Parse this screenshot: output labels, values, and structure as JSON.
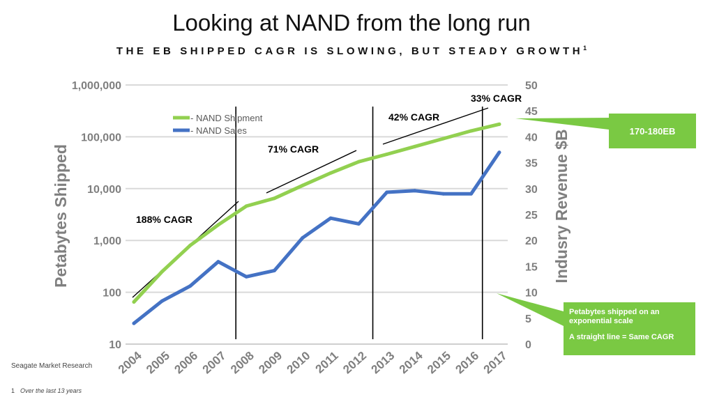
{
  "title": "Looking at NAND from the long run",
  "subtitle": "THE EB SHIPPED CAGR IS SLOWING, BUT STEADY GROWTH",
  "subtitle_sup": "1",
  "source": "Seagate Market Research",
  "footnote": {
    "number": "1",
    "text": "Over the last 13 years"
  },
  "callouts": {
    "top": "170-180EB",
    "bottom_line1": "Petabytes shipped on an exponential scale",
    "bottom_line2": "A straight line = Same CAGR"
  },
  "colors": {
    "shipment": "#92d050",
    "sales": "#4472c4",
    "callout": "#7ac943",
    "grid": "#d9d9d9",
    "axis_text": "#7f7f7f"
  },
  "chart_data": {
    "type": "line",
    "x": [
      "2004",
      "2005",
      "2006",
      "2007",
      "2008",
      "2009",
      "2010",
      "2011",
      "2012",
      "2013",
      "2014",
      "2015",
      "2016",
      "2017"
    ],
    "ylabel": "Petabytes Shipped",
    "y2label": "Indusry Revenue $B",
    "yscale": "log",
    "ylim": [
      10,
      1000000
    ],
    "y_ticks": [
      "10",
      "100",
      "1,000",
      "10,000",
      "100,000",
      "1,000,000"
    ],
    "y2lim": [
      0,
      50
    ],
    "y2_ticks": [
      "0",
      "5",
      "10",
      "15",
      "20",
      "25",
      "30",
      "35",
      "40",
      "45",
      "50"
    ],
    "grid": true,
    "legend_position": "upper-left",
    "series": [
      {
        "name": "- NAND Shipment",
        "axis": "left",
        "values": [
          65,
          250,
          800,
          2000,
          4600,
          6500,
          11500,
          20000,
          33000,
          46000,
          65000,
          92000,
          130000,
          175000
        ]
      },
      {
        "name": "- NAND Sales",
        "axis": "right",
        "values": [
          4,
          8.3,
          11.2,
          15.9,
          13,
          14.2,
          20.5,
          24.3,
          23.2,
          29.3,
          29.6,
          29,
          29,
          37
        ]
      }
    ],
    "dividers": [
      "2008",
      "2013",
      "2016-2017"
    ],
    "annotations": [
      "188% CAGR",
      "71% CAGR",
      "42% CAGR",
      "33% CAGR"
    ]
  }
}
